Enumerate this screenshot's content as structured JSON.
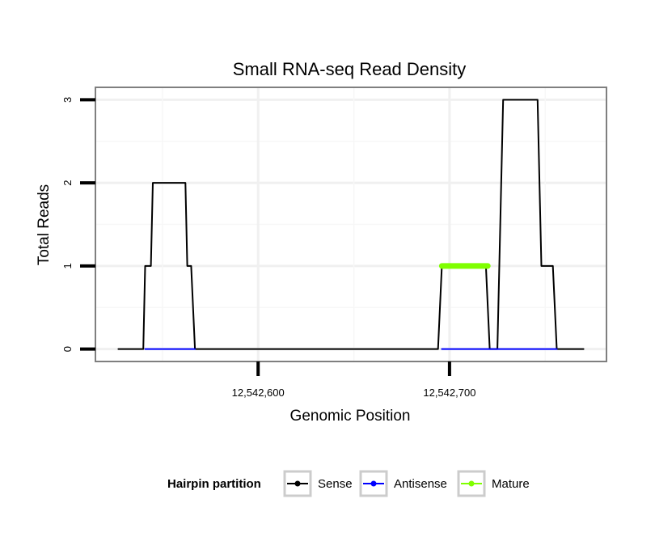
{
  "chart_data": {
    "type": "line",
    "title": "Small RNA-seq Read Density",
    "xlabel": "Genomic Position",
    "ylabel": "Total Reads",
    "xlim": [
      12542515,
      12542782
    ],
    "ylim": [
      -0.15,
      3.15
    ],
    "x_ticks": [
      12542600,
      12542700
    ],
    "x_tick_labels": [
      "12,542,600",
      "12,542,700"
    ],
    "y_ticks": [
      0,
      1,
      2,
      3
    ],
    "y_tick_labels": [
      "0",
      "1",
      "2",
      "3"
    ],
    "grid": true,
    "legend": {
      "title": "Hairpin partition",
      "position": "bottom",
      "entries": [
        "Sense",
        "Antisense",
        "Mature"
      ]
    },
    "series": [
      {
        "name": "Sense",
        "color": "#000000",
        "x": [
          12542527,
          12542540,
          12542541,
          12542544,
          12542545,
          12542562,
          12542563,
          12542565,
          12542567,
          12542694,
          12542696,
          12542719,
          12542721,
          12542722,
          12542725,
          12542728,
          12542746,
          12542748,
          12542754,
          12542756,
          12542770
        ],
        "y": [
          0,
          0,
          1,
          1,
          2,
          2,
          1,
          1,
          0,
          0,
          1,
          1,
          0,
          0,
          0,
          3,
          3,
          1,
          1,
          0,
          0
        ]
      },
      {
        "name": "Antisense",
        "color": "#0000ff",
        "x": [
          12542541,
          12542567
        ],
        "y": [
          0,
          0
        ]
      },
      {
        "name": "Antisense",
        "color": "#0000ff",
        "x": [
          12542696,
          12542756
        ],
        "y": [
          0,
          0
        ]
      },
      {
        "name": "Mature",
        "color": "#7fff00",
        "x": [
          12542696,
          12542720
        ],
        "y": [
          1,
          1
        ]
      }
    ]
  }
}
